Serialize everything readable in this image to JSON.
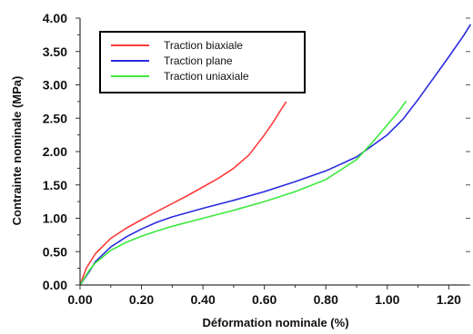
{
  "chart_data": {
    "type": "line",
    "xlabel": "Déformation nominale (%)",
    "ylabel": "Contrainte nominale (MPa)",
    "xlim": [
      0,
      1.27
    ],
    "ylim": [
      0,
      4.0
    ],
    "x_ticks": [
      0.0,
      0.2,
      0.4,
      0.6,
      0.8,
      1.0,
      1.2
    ],
    "x_tick_labels": [
      "0.00",
      "0.20",
      "0.40",
      "0.60",
      "0.80",
      "1.00",
      "1.20"
    ],
    "y_ticks": [
      0.0,
      0.5,
      1.0,
      1.5,
      2.0,
      2.5,
      3.0,
      3.5,
      4.0
    ],
    "y_tick_labels": [
      "0.00",
      "0.50",
      "1.00",
      "1.50",
      "2.00",
      "2.50",
      "3.00",
      "3.50",
      "4.00"
    ],
    "grid": false,
    "legend_position": "top-left",
    "series": [
      {
        "name": "Traction biaxiale",
        "color": "#ff3b3b",
        "x": [
          0,
          0.02,
          0.05,
          0.1,
          0.15,
          0.2,
          0.25,
          0.3,
          0.35,
          0.4,
          0.45,
          0.5,
          0.55,
          0.6,
          0.63,
          0.65,
          0.67
        ],
        "y": [
          0,
          0.25,
          0.47,
          0.7,
          0.85,
          0.98,
          1.1,
          1.22,
          1.34,
          1.47,
          1.6,
          1.75,
          1.95,
          2.25,
          2.45,
          2.6,
          2.74
        ]
      },
      {
        "name": "Traction plane",
        "color": "#2a2ae0",
        "x": [
          0,
          0.03,
          0.05,
          0.1,
          0.15,
          0.2,
          0.25,
          0.3,
          0.4,
          0.5,
          0.6,
          0.7,
          0.8,
          0.9,
          1.0,
          1.05,
          1.1,
          1.15,
          1.2,
          1.25,
          1.27
        ],
        "y": [
          0,
          0.2,
          0.35,
          0.57,
          0.72,
          0.84,
          0.94,
          1.02,
          1.15,
          1.27,
          1.4,
          1.55,
          1.71,
          1.92,
          2.25,
          2.48,
          2.78,
          3.1,
          3.42,
          3.75,
          3.9
        ]
      },
      {
        "name": "Traction uniaxiale",
        "color": "#3ee83e",
        "x": [
          0,
          0.03,
          0.05,
          0.1,
          0.15,
          0.2,
          0.25,
          0.3,
          0.4,
          0.5,
          0.6,
          0.7,
          0.8,
          0.9,
          0.95,
          1.0,
          1.04,
          1.06
        ],
        "y": [
          0,
          0.22,
          0.33,
          0.52,
          0.64,
          0.73,
          0.81,
          0.88,
          1.0,
          1.12,
          1.25,
          1.4,
          1.58,
          1.88,
          2.13,
          2.4,
          2.62,
          2.75
        ]
      }
    ]
  }
}
